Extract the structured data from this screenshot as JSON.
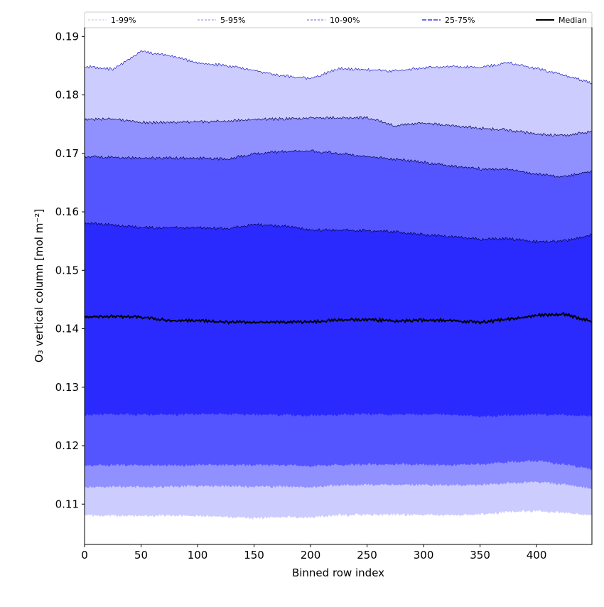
{
  "chart_data": {
    "type": "area",
    "title": "",
    "xlabel": "Binned row index",
    "ylabel": "O₃ vertical column [mol m⁻²]",
    "xlim": [
      0,
      449
    ],
    "ylim": [
      0.1031,
      0.1915
    ],
    "xticks": [
      0,
      50,
      100,
      150,
      200,
      250,
      300,
      350,
      400
    ],
    "yticks": [
      0.11,
      0.12,
      0.13,
      0.14,
      0.15,
      0.16,
      0.17,
      0.18,
      0.19
    ],
    "ytick_labels": [
      "0.11",
      "0.12",
      "0.13",
      "0.14",
      "0.15",
      "0.16",
      "0.17",
      "0.18",
      "0.19"
    ],
    "grid": false,
    "legend_placement": "top, above plot, single row",
    "x": [
      0,
      25,
      50,
      75,
      100,
      125,
      150,
      175,
      200,
      225,
      250,
      275,
      300,
      325,
      350,
      375,
      400,
      425,
      449
    ],
    "bands": [
      {
        "name": "1-99%",
        "color": "#ccccff",
        "legend_color": "#ccccff",
        "lower": [
          0.1081,
          0.108,
          0.108,
          0.108,
          0.108,
          0.1078,
          0.1076,
          0.1078,
          0.1077,
          0.1081,
          0.1082,
          0.1082,
          0.1082,
          0.1081,
          0.1082,
          0.1087,
          0.1088,
          0.1085,
          0.1081
        ],
        "upper": [
          0.1849,
          0.1844,
          0.1874,
          0.1867,
          0.1855,
          0.185,
          0.1842,
          0.1833,
          0.1828,
          0.1845,
          0.1843,
          0.1841,
          0.1846,
          0.1849,
          0.1847,
          0.1855,
          0.1845,
          0.1834,
          0.182
        ]
      },
      {
        "name": "5-95%",
        "color": "#9090ff",
        "legend_color": "#a0a0ee",
        "lower": [
          0.1129,
          0.113,
          0.1129,
          0.113,
          0.1131,
          0.1131,
          0.113,
          0.113,
          0.1129,
          0.1132,
          0.1133,
          0.1133,
          0.1133,
          0.1132,
          0.1133,
          0.1136,
          0.1138,
          0.1134,
          0.1126
        ],
        "upper": [
          0.1758,
          0.1759,
          0.1753,
          0.1753,
          0.1754,
          0.1755,
          0.1758,
          0.1759,
          0.1761,
          0.1761,
          0.1761,
          0.1747,
          0.1752,
          0.1748,
          0.1743,
          0.174,
          0.1733,
          0.1731,
          0.1737
        ]
      },
      {
        "name": "10-90%",
        "color": "#5555ff",
        "legend_color": "#8080ee",
        "lower": [
          0.1166,
          0.1167,
          0.1167,
          0.1166,
          0.1167,
          0.1167,
          0.1167,
          0.1167,
          0.1165,
          0.1167,
          0.1168,
          0.1168,
          0.1168,
          0.1167,
          0.1168,
          0.1172,
          0.1174,
          0.1168,
          0.116
        ],
        "upper": [
          0.1695,
          0.1693,
          0.1692,
          0.1692,
          0.1692,
          0.169,
          0.1699,
          0.1703,
          0.1704,
          0.17,
          0.1695,
          0.169,
          0.1685,
          0.1678,
          0.1674,
          0.1673,
          0.1664,
          0.166,
          0.167
        ]
      },
      {
        "name": "25-75%",
        "color": "#2a2aff",
        "legend_color": "#6a6af0",
        "lower": [
          0.1253,
          0.1254,
          0.1253,
          0.1253,
          0.1254,
          0.1254,
          0.1253,
          0.1253,
          0.1251,
          0.1253,
          0.1254,
          0.1253,
          0.1254,
          0.1253,
          0.125,
          0.1252,
          0.1253,
          0.1253,
          0.125
        ],
        "upper": [
          0.1581,
          0.1578,
          0.1573,
          0.1573,
          0.1573,
          0.1571,
          0.1578,
          0.1576,
          0.1569,
          0.1569,
          0.1568,
          0.1566,
          0.1561,
          0.1558,
          0.1553,
          0.1554,
          0.1549,
          0.155,
          0.1561
        ]
      }
    ],
    "median": {
      "name": "Median",
      "color": "#000000",
      "values": [
        0.142,
        0.1421,
        0.142,
        0.1414,
        0.1414,
        0.1411,
        0.1411,
        0.1412,
        0.1411,
        0.1415,
        0.1416,
        0.1413,
        0.1415,
        0.1414,
        0.1411,
        0.1416,
        0.1423,
        0.1425,
        0.1412
      ]
    }
  }
}
